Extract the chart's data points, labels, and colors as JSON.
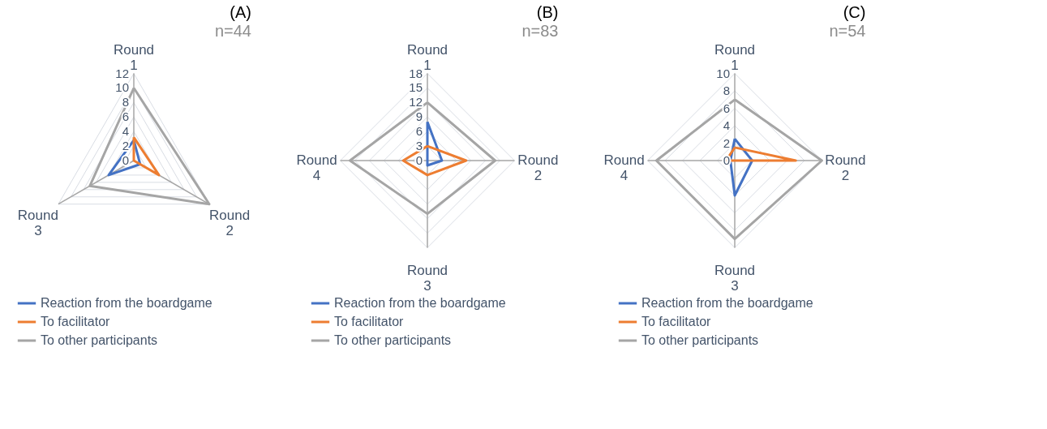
{
  "chart_data": [
    {
      "type": "radar",
      "title": "(A)",
      "subtitle": "n=44",
      "categories": [
        "Round 1",
        "Round 2",
        "Round 3"
      ],
      "ylim": [
        0,
        12
      ],
      "yticks": [
        0,
        2,
        4,
        6,
        8,
        10,
        12
      ],
      "grid": true,
      "legend": "bottom",
      "series": [
        {
          "name": "Reaction from the boardgame",
          "color": "#4472c4",
          "values": [
            2.8,
            1,
            4
          ]
        },
        {
          "name": "To facilitator",
          "color": "#ed7d31",
          "values": [
            3.2,
            4,
            0
          ]
        },
        {
          "name": "To other participants",
          "color": "#a5a5a5",
          "values": [
            10,
            12,
            7
          ]
        }
      ]
    },
    {
      "type": "radar",
      "title": "(B)",
      "subtitle": "n=83",
      "categories": [
        "Round 1",
        "Round 2",
        "Round 3",
        "Round 4"
      ],
      "ylim": [
        0,
        18
      ],
      "yticks": [
        0,
        3,
        6,
        9,
        12,
        15,
        18
      ],
      "grid": true,
      "legend": "bottom",
      "series": [
        {
          "name": "Reaction from the boardgame",
          "color": "#4472c4",
          "values": [
            8,
            3,
            1,
            0
          ]
        },
        {
          "name": "To facilitator",
          "color": "#ed7d31",
          "values": [
            3,
            8,
            3,
            5
          ]
        },
        {
          "name": "To other participants",
          "color": "#a5a5a5",
          "values": [
            12,
            14,
            11,
            16
          ]
        }
      ]
    },
    {
      "type": "radar",
      "title": "(C)",
      "subtitle": "n=54",
      "categories": [
        "Round 1",
        "Round 2",
        "Round 3",
        "Round 4"
      ],
      "ylim": [
        0,
        10
      ],
      "yticks": [
        0,
        2,
        4,
        6,
        8,
        10
      ],
      "grid": true,
      "legend": "bottom",
      "series": [
        {
          "name": "Reaction from the boardgame",
          "color": "#4472c4",
          "values": [
            2.5,
            2,
            4,
            0.5
          ]
        },
        {
          "name": "To facilitator",
          "color": "#ed7d31",
          "values": [
            1.5,
            7,
            0,
            1
          ]
        },
        {
          "name": "To other participants",
          "color": "#a5a5a5",
          "values": [
            7,
            10,
            9,
            9
          ]
        }
      ]
    }
  ]
}
